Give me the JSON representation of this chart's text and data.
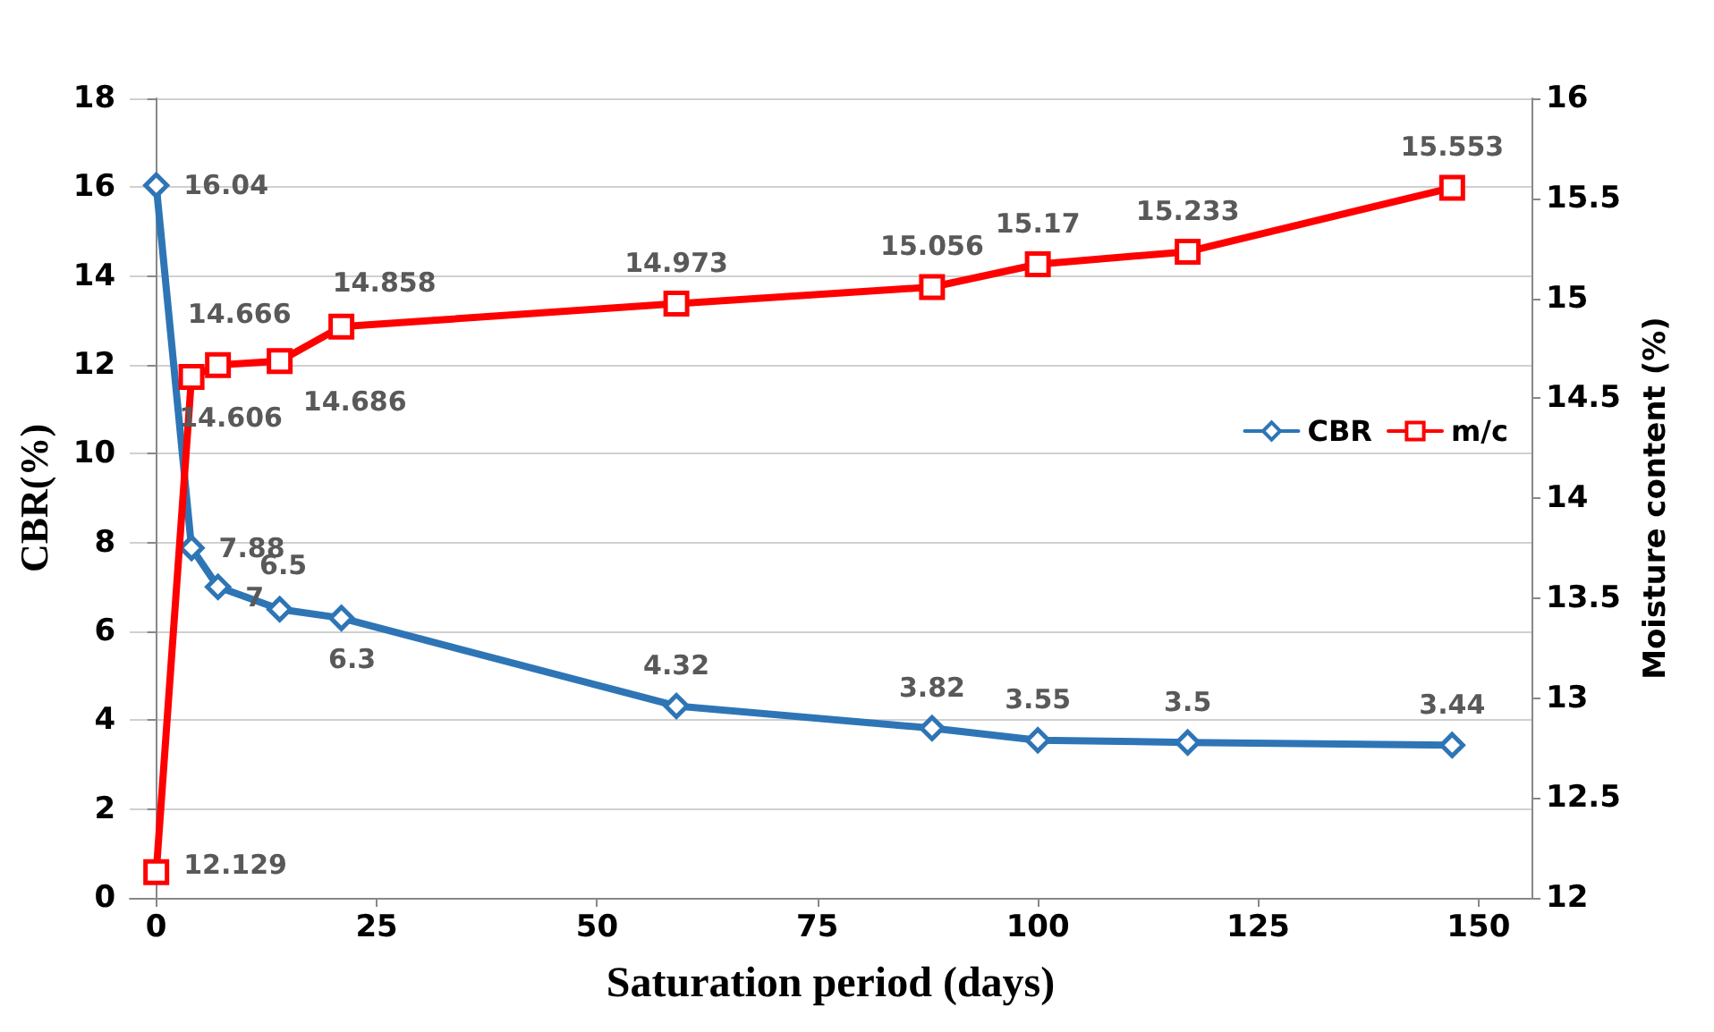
{
  "chart_data": {
    "type": "line",
    "xlabel": "Saturation period (days)",
    "ylabel": "CBR(%)",
    "y2label": "Moisture content (%)",
    "x": [
      0,
      4,
      7,
      14,
      21,
      59,
      88,
      100,
      117,
      147
    ],
    "series": [
      {
        "name": "CBR",
        "color": "#2e75b6",
        "marker": "diamond",
        "values": [
          16.04,
          7.88,
          7,
          6.5,
          6.3,
          4.32,
          3.82,
          3.55,
          3.5,
          3.44
        ]
      },
      {
        "name": "m/c",
        "color": "#ff0000",
        "marker": "square",
        "axis": "y2",
        "values": [
          12.129,
          14.606,
          14.666,
          14.686,
          14.858,
          14.973,
          15.056,
          15.17,
          15.233,
          15.553
        ]
      }
    ],
    "xlim": [
      -3,
      156
    ],
    "xticks": [
      0,
      25,
      50,
      75,
      100,
      125,
      150
    ],
    "ylim": [
      0,
      18
    ],
    "yticks": [
      0,
      2,
      4,
      6,
      8,
      10,
      12,
      14,
      16,
      18
    ],
    "y2lim": [
      12,
      16
    ],
    "y2ticks": [
      12,
      12.5,
      13,
      13.5,
      14,
      14.5,
      15,
      15.5,
      16
    ],
    "grid": "y",
    "legend": "right",
    "data_labels": true,
    "line_style": "solid"
  }
}
